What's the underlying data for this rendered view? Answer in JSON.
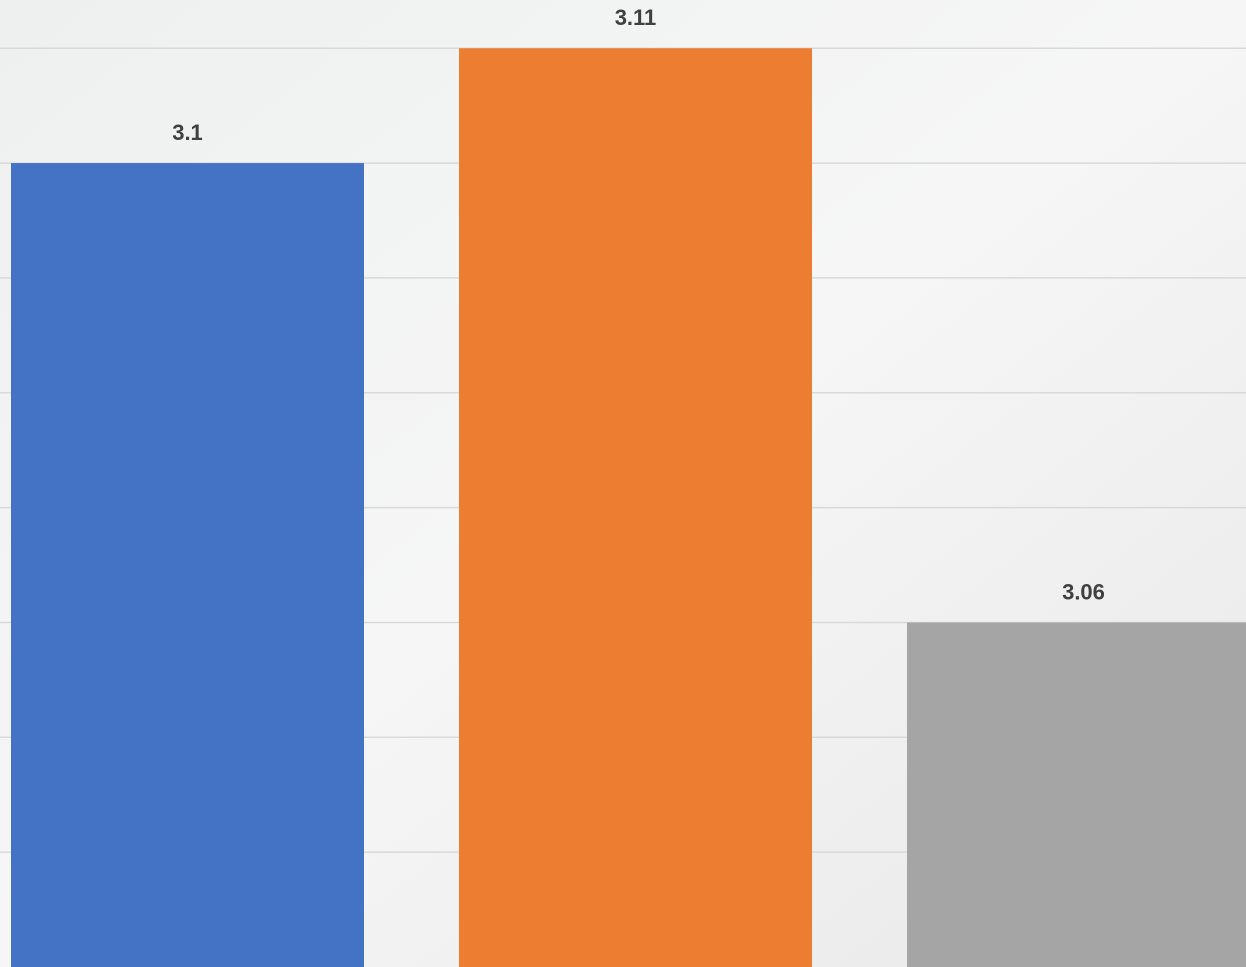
{
  "chart_data": {
    "type": "bar",
    "categories": [
      null,
      null,
      null
    ],
    "values": [
      3.1,
      3.11,
      3.06
    ],
    "colors": [
      "#4472c4",
      "#ed7d31",
      "#a5a5a5"
    ],
    "ylim": [
      3.03,
      3.1142
    ],
    "yticks": [
      3.04,
      3.05,
      3.06,
      3.07,
      3.08,
      3.09,
      3.1,
      3.11
    ],
    "grid": true
  }
}
